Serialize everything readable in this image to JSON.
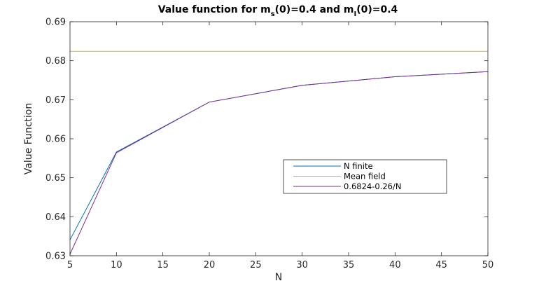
{
  "chart_data": {
    "type": "line",
    "title": {
      "prefix": "Value function for m",
      "sub1": "s",
      "mid": "(0)=0.4 and m",
      "sub2": "I",
      "suffix": "(0)=0.4"
    },
    "xlabel": "N",
    "ylabel": "Value Function",
    "xlim": [
      5,
      50
    ],
    "ylim": [
      0.63,
      0.69
    ],
    "xticks": [
      5,
      10,
      15,
      20,
      25,
      30,
      35,
      40,
      45,
      50
    ],
    "yticks": [
      0.63,
      0.64,
      0.65,
      0.66,
      0.67,
      0.68,
      0.69
    ],
    "ytick_labels": [
      "0.63",
      "0.64",
      "0.65",
      "0.66",
      "0.67",
      "0.68",
      "0.69"
    ],
    "grid": false,
    "legend_position": "center-right",
    "series": [
      {
        "name": "N finite",
        "color": "#0072bd",
        "x": [
          5,
          10,
          20,
          30,
          40,
          50
        ],
        "y": [
          0.6341,
          0.6566,
          0.6694,
          0.6737,
          0.6759,
          0.6772
        ]
      },
      {
        "name": "Mean field",
        "color": "#edb120",
        "x": [
          5,
          50
        ],
        "y": [
          0.6824,
          0.6824
        ]
      },
      {
        "name": "0.6824-0.26/N",
        "color": "#7e2f8e",
        "x": [
          5,
          10,
          20,
          30,
          40,
          50
        ],
        "y": [
          0.6304,
          0.6564,
          0.6694,
          0.6737,
          0.6759,
          0.6772
        ]
      }
    ]
  }
}
